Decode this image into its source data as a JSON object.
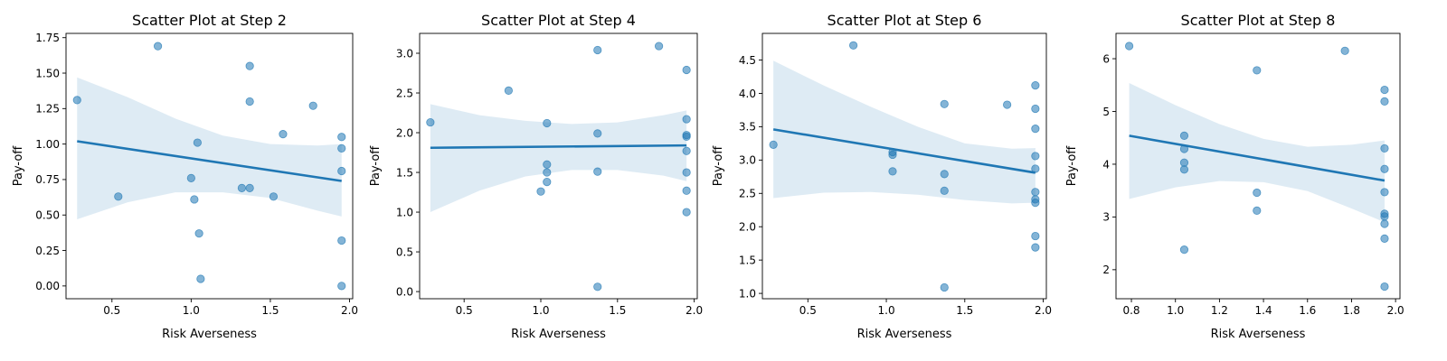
{
  "chart_data": [
    {
      "type": "scatter",
      "title": "Scatter Plot at Step 2",
      "xlabel": "Risk Averseness",
      "ylabel": "Pay-off",
      "xlim": [
        0.21,
        2.02
      ],
      "ylim": [
        -0.09,
        1.78
      ],
      "xticks": [
        0.5,
        1.0,
        1.5,
        2.0
      ],
      "xtick_labels": [
        "0.5",
        "1.0",
        "1.5",
        "2.0"
      ],
      "yticks": [
        0.0,
        0.25,
        0.5,
        0.75,
        1.0,
        1.25,
        1.5,
        1.75
      ],
      "ytick_labels": [
        "0.00",
        "0.25",
        "0.50",
        "0.75",
        "1.00",
        "1.25",
        "1.50",
        "1.75"
      ],
      "points": [
        [
          0.28,
          1.31
        ],
        [
          0.54,
          0.63
        ],
        [
          0.79,
          1.69
        ],
        [
          1.0,
          0.76
        ],
        [
          1.02,
          0.61
        ],
        [
          1.04,
          1.01
        ],
        [
          1.05,
          0.37
        ],
        [
          1.06,
          0.05
        ],
        [
          1.32,
          0.69
        ],
        [
          1.37,
          1.55
        ],
        [
          1.37,
          1.3
        ],
        [
          1.37,
          0.69
        ],
        [
          1.52,
          0.63
        ],
        [
          1.58,
          1.07
        ],
        [
          1.77,
          1.27
        ],
        [
          1.95,
          1.05
        ],
        [
          1.95,
          0.97
        ],
        [
          1.95,
          0.81
        ],
        [
          1.95,
          0.32
        ],
        [
          1.95,
          0.0
        ]
      ],
      "regression": {
        "x": [
          0.28,
          1.95
        ],
        "y": [
          1.02,
          0.74
        ]
      },
      "band": {
        "x": [
          0.28,
          0.6,
          0.9,
          1.2,
          1.5,
          1.8,
          1.95
        ],
        "upper": [
          1.47,
          1.33,
          1.18,
          1.06,
          1.0,
          0.99,
          1.0
        ],
        "lower": [
          0.47,
          0.59,
          0.66,
          0.66,
          0.62,
          0.53,
          0.49
        ]
      }
    },
    {
      "type": "scatter",
      "title": "Scatter Plot at Step 4",
      "xlabel": "Risk Averseness",
      "ylabel": "Pay-off",
      "xlim": [
        0.21,
        2.02
      ],
      "ylim": [
        -0.09,
        3.25
      ],
      "xticks": [
        0.5,
        1.0,
        1.5,
        2.0
      ],
      "xtick_labels": [
        "0.5",
        "1.0",
        "1.5",
        "2.0"
      ],
      "yticks": [
        0.0,
        0.5,
        1.0,
        1.5,
        2.0,
        2.5,
        3.0
      ],
      "ytick_labels": [
        "0.0",
        "0.5",
        "1.0",
        "1.5",
        "2.0",
        "2.5",
        "3.0"
      ],
      "points": [
        [
          0.28,
          2.13
        ],
        [
          0.79,
          2.53
        ],
        [
          1.0,
          1.26
        ],
        [
          1.04,
          2.12
        ],
        [
          1.04,
          1.6
        ],
        [
          1.04,
          1.5
        ],
        [
          1.04,
          1.38
        ],
        [
          1.37,
          3.04
        ],
        [
          1.37,
          1.99
        ],
        [
          1.37,
          1.51
        ],
        [
          1.37,
          0.06
        ],
        [
          1.77,
          3.09
        ],
        [
          1.95,
          2.79
        ],
        [
          1.95,
          2.17
        ],
        [
          1.95,
          1.97
        ],
        [
          1.95,
          1.95
        ],
        [
          1.95,
          1.77
        ],
        [
          1.95,
          1.5
        ],
        [
          1.95,
          1.27
        ],
        [
          1.95,
          1.0
        ]
      ],
      "regression": {
        "x": [
          0.28,
          1.95
        ],
        "y": [
          1.81,
          1.84
        ]
      },
      "band": {
        "x": [
          0.28,
          0.6,
          0.9,
          1.2,
          1.5,
          1.8,
          1.95
        ],
        "upper": [
          2.36,
          2.22,
          2.15,
          2.11,
          2.13,
          2.22,
          2.28
        ],
        "lower": [
          1.0,
          1.27,
          1.45,
          1.53,
          1.53,
          1.46,
          1.39
        ]
      }
    },
    {
      "type": "scatter",
      "title": "Scatter Plot at Step 6",
      "xlabel": "Risk Averseness",
      "ylabel": "Pay-off",
      "xlim": [
        0.21,
        2.02
      ],
      "ylim": [
        0.92,
        4.9
      ],
      "xticks": [
        0.5,
        1.0,
        1.5,
        2.0
      ],
      "xtick_labels": [
        "0.5",
        "1.0",
        "1.5",
        "2.0"
      ],
      "yticks": [
        1.0,
        1.5,
        2.0,
        2.5,
        3.0,
        3.5,
        4.0,
        4.5
      ],
      "ytick_labels": [
        "1.0",
        "1.5",
        "2.0",
        "2.5",
        "3.0",
        "3.5",
        "4.0",
        "4.5"
      ],
      "points": [
        [
          0.28,
          3.23
        ],
        [
          0.79,
          4.72
        ],
        [
          1.04,
          3.12
        ],
        [
          1.04,
          3.08
        ],
        [
          1.04,
          2.83
        ],
        [
          1.37,
          3.84
        ],
        [
          1.37,
          2.79
        ],
        [
          1.37,
          2.54
        ],
        [
          1.37,
          1.09
        ],
        [
          1.77,
          3.83
        ],
        [
          1.95,
          4.12
        ],
        [
          1.95,
          3.77
        ],
        [
          1.95,
          3.47
        ],
        [
          1.95,
          3.06
        ],
        [
          1.95,
          2.87
        ],
        [
          1.95,
          2.52
        ],
        [
          1.95,
          2.41
        ],
        [
          1.95,
          2.36
        ],
        [
          1.95,
          1.86
        ],
        [
          1.95,
          1.69
        ]
      ],
      "regression": {
        "x": [
          0.28,
          1.95
        ],
        "y": [
          3.46,
          2.81
        ]
      },
      "band": {
        "x": [
          0.28,
          0.6,
          0.9,
          1.2,
          1.5,
          1.8,
          1.95
        ],
        "upper": [
          4.49,
          4.12,
          3.8,
          3.5,
          3.25,
          3.17,
          3.18
        ],
        "lower": [
          2.43,
          2.51,
          2.52,
          2.48,
          2.4,
          2.35,
          2.36
        ]
      }
    },
    {
      "type": "scatter",
      "title": "Scatter Plot at Step 8",
      "xlabel": "Risk Averseness",
      "ylabel": "Pay-off",
      "xlim": [
        0.73,
        2.02
      ],
      "ylim": [
        1.45,
        6.48
      ],
      "xticks": [
        0.8,
        1.0,
        1.2,
        1.4,
        1.6,
        1.8,
        2.0
      ],
      "xtick_labels": [
        "0.8",
        "1.0",
        "1.2",
        "1.4",
        "1.6",
        "1.8",
        "2.0"
      ],
      "yticks": [
        2,
        3,
        4,
        5,
        6
      ],
      "ytick_labels": [
        "2",
        "3",
        "4",
        "5",
        "6"
      ],
      "points": [
        [
          0.79,
          6.24
        ],
        [
          1.04,
          4.54
        ],
        [
          1.04,
          4.29
        ],
        [
          1.04,
          4.03
        ],
        [
          1.04,
          3.9
        ],
        [
          1.04,
          2.38
        ],
        [
          1.37,
          5.78
        ],
        [
          1.37,
          3.46
        ],
        [
          1.37,
          3.12
        ],
        [
          1.77,
          6.15
        ],
        [
          1.95,
          5.41
        ],
        [
          1.95,
          5.19
        ],
        [
          1.95,
          4.3
        ],
        [
          1.95,
          3.91
        ],
        [
          1.95,
          3.47
        ],
        [
          1.95,
          3.06
        ],
        [
          1.95,
          3.01
        ],
        [
          1.95,
          2.87
        ],
        [
          1.95,
          2.59
        ],
        [
          1.95,
          1.68
        ]
      ],
      "regression": {
        "x": [
          0.79,
          1.95
        ],
        "y": [
          4.54,
          3.69
        ]
      },
      "band": {
        "x": [
          0.79,
          1.0,
          1.2,
          1.4,
          1.6,
          1.8,
          1.95
        ],
        "upper": [
          5.54,
          5.12,
          4.76,
          4.48,
          4.33,
          4.37,
          4.45
        ],
        "lower": [
          3.34,
          3.56,
          3.68,
          3.66,
          3.49,
          3.16,
          2.9
        ]
      }
    }
  ],
  "colors": {
    "point_fill": "#1f77b4",
    "point_opacity": "0.55",
    "line": "#1f77b4",
    "band_fill": "#1f77b4",
    "band_opacity": "0.15"
  }
}
